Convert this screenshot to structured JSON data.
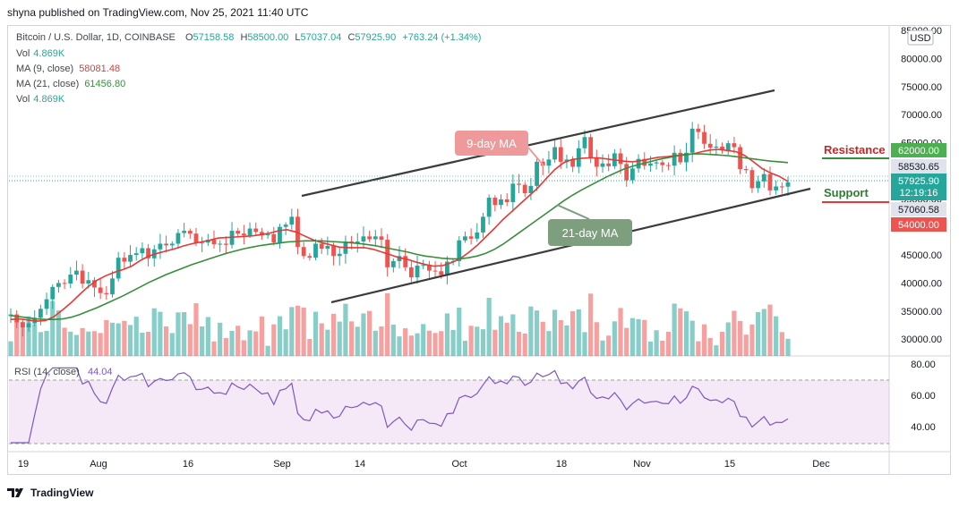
{
  "publisher_line": "shyna published on TradingView.com, Nov 25, 2021 11:40 UTC",
  "header": {
    "symbol": "Bitcoin / U.S. Dollar, 1D, COINBASE",
    "o_label": "O",
    "o": "57158.58",
    "h_label": "H",
    "h": "58500.00",
    "l_label": "L",
    "l": "57037.04",
    "c_label": "C",
    "c": "57925.90",
    "change": "+763.24 (+1.34%)",
    "vol_label": "Vol",
    "vol": "4.869K",
    "ma9_label": "MA (9, close)",
    "ma9": "58081.48",
    "ma21_label": "MA (21, close)",
    "ma21": "61456.80",
    "vol2_label": "Vol",
    "vol2": "4.869K",
    "currency": "USD"
  },
  "price_axis": [
    "85000.00",
    "80000.00",
    "75000.00",
    "70000.00",
    "65000.00",
    "60000.00",
    "55000.00",
    "50000.00",
    "45000.00",
    "40000.00",
    "35000.00",
    "30000.00"
  ],
  "price_tags": {
    "resistance": "62000.00",
    "level_a": "58530.65",
    "last": "57925.90",
    "countdown": "12:19:16",
    "level_b": "57060.58",
    "support": "54000.00"
  },
  "annotations": {
    "resistance": "Resistance",
    "support": "Support",
    "ma9_callout": "9-day MA",
    "ma21_callout": "21-day MA"
  },
  "rsi": {
    "label": "RSI (14, close)",
    "value": "44.04",
    "axis": [
      "80.00",
      "60.00",
      "40.00"
    ]
  },
  "time_axis": [
    "19",
    "Aug",
    "16",
    "Sep",
    "14",
    "Oct",
    "18",
    "Nov",
    "15",
    "Dec"
  ],
  "footer": {
    "brand": "TradingView"
  },
  "colors": {
    "up": "#26a69a",
    "down": "#ef5350",
    "ma9": "#e53935",
    "ma21": "#388e3c",
    "rsi": "#7e57c2",
    "channel": "#3c3c3c"
  },
  "chart_data": {
    "type": "candlestick",
    "title": "Bitcoin / U.S. Dollar, 1D, COINBASE",
    "x_range": [
      "2021-07-19",
      "2021-11-25"
    ],
    "ylim": [
      27000,
      85000
    ],
    "series": [
      {
        "name": "MA (9, close)",
        "values": [
          33500,
          33600,
          33400,
          33200,
          33300,
          34000,
          35200,
          36500,
          38000,
          39400,
          40500,
          41300,
          41900,
          42400,
          43000,
          44000,
          44800,
          45300,
          45700,
          46100,
          46600,
          47000,
          47300,
          47600,
          48000,
          48100,
          48200,
          48300,
          48400,
          48600,
          48900,
          49300,
          49500,
          49100,
          48400,
          47700,
          47200,
          46800,
          46400,
          46300,
          46300,
          46300,
          46000,
          45500,
          45000,
          44500,
          44200,
          43700,
          43300,
          43000,
          43100,
          43600,
          44300,
          45400,
          46700,
          48200,
          49700,
          51300,
          52700,
          54100,
          55500,
          56900,
          58600,
          60200,
          61400,
          62000,
          62200,
          62300,
          62300,
          62100,
          61900,
          61700,
          61600,
          61800,
          62100,
          62400,
          62500,
          62700,
          62800,
          63000,
          63400,
          63700,
          63800,
          63600,
          63400,
          62700,
          61600,
          60400,
          59600,
          59000,
          58081
        ]
      },
      {
        "name": "MA (21, close)",
        "values": [
          34200,
          34000,
          33800,
          33600,
          33500,
          33500,
          33600,
          33900,
          34400,
          35000,
          35600,
          36300,
          37000,
          37700,
          38500,
          39300,
          40100,
          40800,
          41500,
          42100,
          42700,
          43300,
          43800,
          44300,
          44800,
          45300,
          45700,
          46100,
          46400,
          46700,
          46900,
          47100,
          47300,
          47400,
          47500,
          47500,
          47500,
          47400,
          47300,
          47200,
          47100,
          46900,
          46700,
          46400,
          46100,
          45800,
          45500,
          45100,
          44800,
          44600,
          44400,
          44300,
          44300,
          44500,
          44800,
          45300,
          46000,
          46900,
          48000,
          49100,
          50200,
          51300,
          52400,
          53500,
          54600,
          55600,
          56500,
          57300,
          58100,
          58900,
          59600,
          60300,
          60800,
          61200,
          61600,
          62000,
          62300,
          62600,
          62900,
          63000,
          63000,
          62900,
          62800,
          62700,
          62500,
          62300,
          62100,
          61900,
          61700,
          61600,
          61456
        ]
      }
    ],
    "close": [
      34400,
      33000,
      32100,
      32800,
      33800,
      35400,
      37100,
      39300,
      40000,
      39900,
      41500,
      42200,
      39900,
      40500,
      39200,
      38200,
      38000,
      40800,
      44500,
      43800,
      45000,
      45300,
      46200,
      44400,
      46000,
      47000,
      46700,
      47000,
      48900,
      49300,
      48800,
      47100,
      47200,
      47700,
      46900,
      47000,
      46800,
      49300,
      48800,
      48500,
      49700,
      49100,
      48500,
      48700,
      47200,
      50000,
      50400,
      51800,
      46400,
      44800,
      44500,
      47000,
      46100,
      46600,
      44800,
      45200,
      47400,
      47100,
      47400,
      48300,
      47800,
      48300,
      47700,
      42800,
      43900,
      44800,
      42800,
      41000,
      43100,
      43200,
      42200,
      42100,
      41400,
      43800,
      43900,
      47600,
      48300,
      47900,
      49000,
      51800,
      55200,
      53900,
      54900,
      54400,
      57700,
      57500,
      56000,
      57300,
      61600,
      60900,
      62000,
      64200,
      61600,
      62000,
      60700,
      64000,
      66000,
      62300,
      60700,
      61300,
      60800,
      63100,
      61200,
      58300,
      60400,
      62100,
      60900,
      61300,
      61500,
      61000,
      60900,
      63200,
      61500,
      63200,
      67500,
      66900,
      64800,
      64100,
      64300,
      63600,
      64900,
      64200,
      60300,
      60100,
      56900,
      58100,
      59400,
      56500,
      57200,
      57158,
      57925
    ]
  }
}
